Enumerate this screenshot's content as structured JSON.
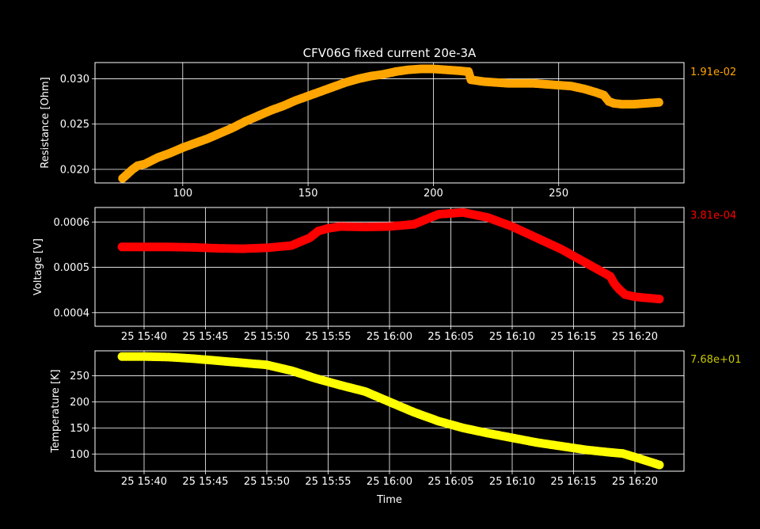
{
  "chart_data": [
    {
      "type": "scatter",
      "title": "CFV06G fixed current 20e-3A",
      "ylabel": "Resistance [Ohm]",
      "xlabel": "",
      "xlim": [
        65,
        300
      ],
      "ylim": [
        0.0185,
        0.0318
      ],
      "xticks": [
        100,
        150,
        200,
        250
      ],
      "xtick_labels": [
        "100",
        "150",
        "200",
        "250"
      ],
      "yticks": [
        0.02,
        0.025,
        0.03
      ],
      "ytick_labels": [
        "0.020",
        "0.025",
        "0.030"
      ],
      "grid": true,
      "color": "#ffa500",
      "side_label": "1.91e-02",
      "series": [
        {
          "x": [
            76,
            78,
            80,
            82,
            85,
            90,
            95,
            100,
            105,
            110,
            115,
            120,
            125,
            130,
            135,
            140,
            145,
            150,
            155,
            160,
            165,
            170,
            175,
            180,
            185,
            190,
            195,
            200,
            205,
            210,
            214,
            215,
            220,
            225,
            230,
            235,
            240,
            245,
            250,
            255,
            260,
            265,
            268,
            270,
            272,
            275,
            280,
            285,
            290
          ],
          "values": [
            0.019,
            0.0195,
            0.02,
            0.0204,
            0.0206,
            0.0213,
            0.0218,
            0.0224,
            0.0229,
            0.0234,
            0.024,
            0.0246,
            0.0253,
            0.0259,
            0.0265,
            0.027,
            0.0276,
            0.0281,
            0.0286,
            0.0291,
            0.0296,
            0.03,
            0.0303,
            0.0305,
            0.0308,
            0.031,
            0.0311,
            0.0311,
            0.031,
            0.0309,
            0.0308,
            0.0299,
            0.0297,
            0.0296,
            0.0295,
            0.0295,
            0.0295,
            0.0294,
            0.0293,
            0.0292,
            0.0289,
            0.0285,
            0.0282,
            0.0275,
            0.0273,
            0.0272,
            0.0272,
            0.0273,
            0.0274
          ]
        }
      ]
    },
    {
      "type": "scatter",
      "title": "",
      "ylabel": "Voltage [V]",
      "xlabel": "",
      "xlim": [
        -4,
        44
      ],
      "ylim": [
        0.00037,
        0.000632
      ],
      "xticks": [
        0,
        5,
        10,
        15,
        20,
        25,
        30,
        35,
        40
      ],
      "xtick_labels": [
        "25 15:40",
        "25 15:45",
        "25 15:50",
        "25 15:55",
        "25 16:00",
        "25 16:05",
        "25 16:10",
        "25 16:15",
        "25 16:20"
      ],
      "yticks": [
        0.0004,
        0.0005,
        0.0006
      ],
      "ytick_labels": [
        "0.0004",
        "0.0005",
        "0.0006"
      ],
      "grid": true,
      "color": "#ff0000",
      "side_label": "3.81e-04",
      "series": [
        {
          "x": [
            -1.8,
            0,
            2,
            4,
            6,
            8,
            10,
            12,
            13.5,
            14.2,
            15,
            16,
            18,
            20,
            22,
            24,
            26,
            28,
            30,
            32,
            34,
            36,
            38,
            38.3,
            38.7,
            39.2,
            40,
            42
          ],
          "values": [
            0.000545,
            0.000545,
            0.000545,
            0.000544,
            0.000542,
            0.000541,
            0.000543,
            0.000548,
            0.000565,
            0.00058,
            0.000586,
            0.00059,
            0.000589,
            0.00059,
            0.000595,
            0.000617,
            0.000621,
            0.00061,
            0.00059,
            0.000565,
            0.00054,
            0.00051,
            0.00048,
            0.000465,
            0.000452,
            0.00044,
            0.000435,
            0.00043
          ]
        }
      ]
    },
    {
      "type": "scatter",
      "title": "",
      "ylabel": "Temperature [K]",
      "xlabel": "Time",
      "xlim": [
        -4,
        44
      ],
      "ylim": [
        67,
        298
      ],
      "xticks": [
        0,
        5,
        10,
        15,
        20,
        25,
        30,
        35,
        40
      ],
      "xtick_labels": [
        "25 15:40",
        "25 15:45",
        "25 15:50",
        "25 15:55",
        "25 16:00",
        "25 16:05",
        "25 16:10",
        "25 16:15",
        "25 16:20"
      ],
      "yticks": [
        100,
        150,
        200,
        250
      ],
      "ytick_labels": [
        "100",
        "150",
        "200",
        "250"
      ],
      "grid": true,
      "color": "#ffff00",
      "side_label": "7.68e+01",
      "series": [
        {
          "x": [
            -1.8,
            0,
            2,
            4,
            6,
            8,
            10,
            12,
            14,
            16,
            18,
            20,
            22,
            24,
            26,
            28,
            30,
            32,
            34,
            36,
            38,
            39,
            40,
            42
          ],
          "values": [
            287,
            287,
            286,
            283,
            279,
            275,
            271,
            260,
            245,
            232,
            220,
            200,
            180,
            163,
            150,
            140,
            131,
            122,
            115,
            108,
            103,
            101,
            94,
            79
          ]
        }
      ]
    }
  ]
}
